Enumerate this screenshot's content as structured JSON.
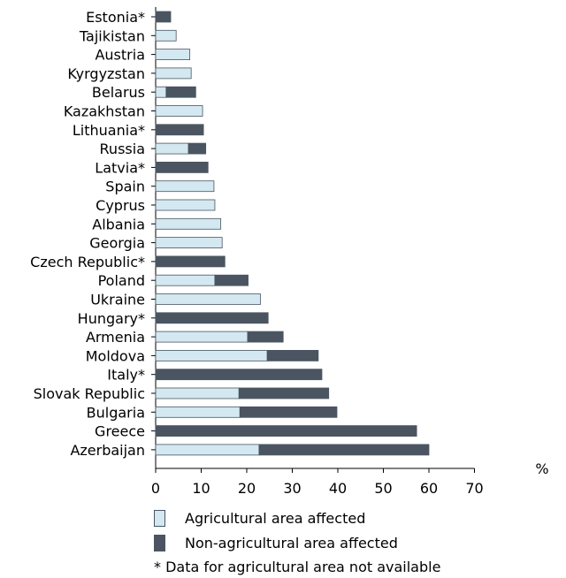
{
  "chart_data": {
    "type": "bar",
    "orientation": "horizontal",
    "stacked": true,
    "categories": [
      "Estonia*",
      "Tajikistan",
      "Austria",
      "Kyrgyzstan",
      "Belarus",
      "Kazakhstan",
      "Lithuania*",
      "Russia",
      "Latvia*",
      "Spain",
      "Cyprus",
      "Albania",
      "Georgia",
      "Czech Republic*",
      "Poland",
      "Ukraine",
      "Hungary*",
      "Armenia",
      "Moldova",
      "Italy*",
      "Slovak Republic",
      "Bulgaria",
      "Greece",
      "Azerbaijan"
    ],
    "series": [
      {
        "name": "Agricultural area affected",
        "color": "#d3e8f1",
        "values": [
          0,
          4.5,
          7.5,
          7.8,
          2.3,
          10.3,
          0,
          7.2,
          0,
          12.8,
          13.0,
          14.3,
          14.6,
          0,
          13.0,
          23.0,
          0,
          20.2,
          24.5,
          0,
          18.3,
          18.5,
          0,
          22.7
        ]
      },
      {
        "name": "Non-agricultural area affected",
        "color": "#4a5561",
        "values": [
          3.3,
          0,
          0,
          0,
          6.5,
          0,
          10.5,
          3.8,
          11.5,
          0,
          0,
          0,
          0,
          15.2,
          7.3,
          0,
          24.7,
          7.8,
          11.2,
          36.5,
          19.7,
          21.3,
          57.3,
          37.3
        ]
      }
    ],
    "x_ticks": [
      "0",
      "10",
      "20",
      "30",
      "40",
      "50",
      "60",
      "70"
    ],
    "xlim": [
      0,
      70
    ],
    "unit": "%",
    "legend_position": "bottom",
    "footnote": "* Data for agricultural area not available"
  }
}
